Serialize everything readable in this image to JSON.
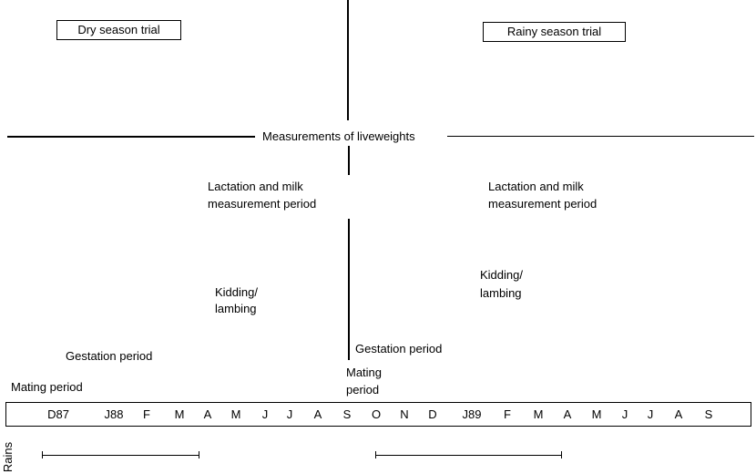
{
  "trials": {
    "dry": "Dry season trial",
    "rainy": "Rainy season trial"
  },
  "measurements_label": "Measurements of liveweights",
  "dry_phases": {
    "lactation_line1": "Lactation and milk",
    "lactation_line2": "measurement period",
    "kidding_line1": "Kidding/",
    "kidding_line2": "lambing",
    "gestation": "Gestation period",
    "mating": "Mating period"
  },
  "rainy_phases": {
    "lactation_line1": "Lactation and milk",
    "lactation_line2": "measurement period",
    "kidding_line1": "Kidding/",
    "kidding_line2": "lambing",
    "gestation": "Gestation period",
    "mating_line1": "Mating",
    "mating_line2": "period"
  },
  "months": [
    "D87",
    "J88",
    "F",
    "M",
    "A",
    "M",
    "J",
    "J",
    "A",
    "S",
    "O",
    "N",
    "D",
    "J89",
    "F",
    "M",
    "A",
    "M",
    "J",
    "J",
    "A",
    "S"
  ],
  "rains_label": "Rains"
}
